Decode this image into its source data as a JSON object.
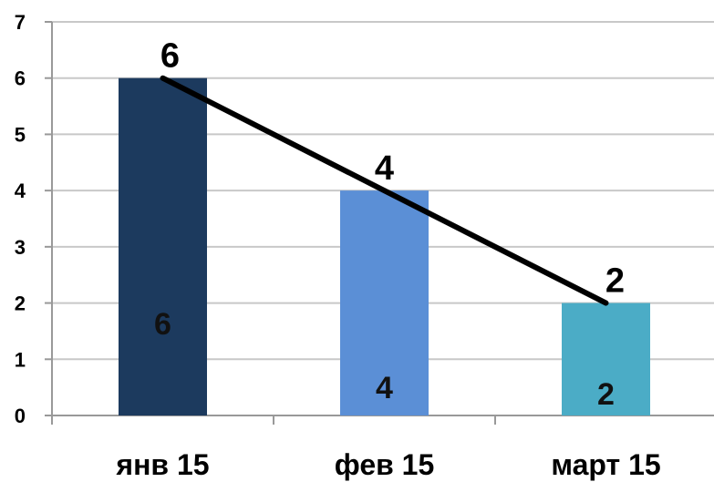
{
  "chart_data": {
    "type": "bar",
    "categories": [
      "янв 15",
      "фев 15",
      "март 15"
    ],
    "series": [
      {
        "type": "bar",
        "values": [
          6,
          4,
          2
        ],
        "colors": [
          "#1c3a5e",
          "#5b8fd6",
          "#4bacc6"
        ],
        "data_labels": [
          "6",
          "4",
          "2"
        ]
      },
      {
        "type": "line",
        "values": [
          6,
          4,
          2
        ],
        "color": "#000000",
        "data_labels": [
          "6",
          "4",
          "2"
        ]
      }
    ],
    "y_ticks": [
      "0",
      "1",
      "2",
      "3",
      "4",
      "5",
      "6",
      "7"
    ],
    "ylim": [
      0,
      7
    ],
    "grid": true,
    "legend": "none",
    "gridline_color": "#c8c8c8"
  }
}
